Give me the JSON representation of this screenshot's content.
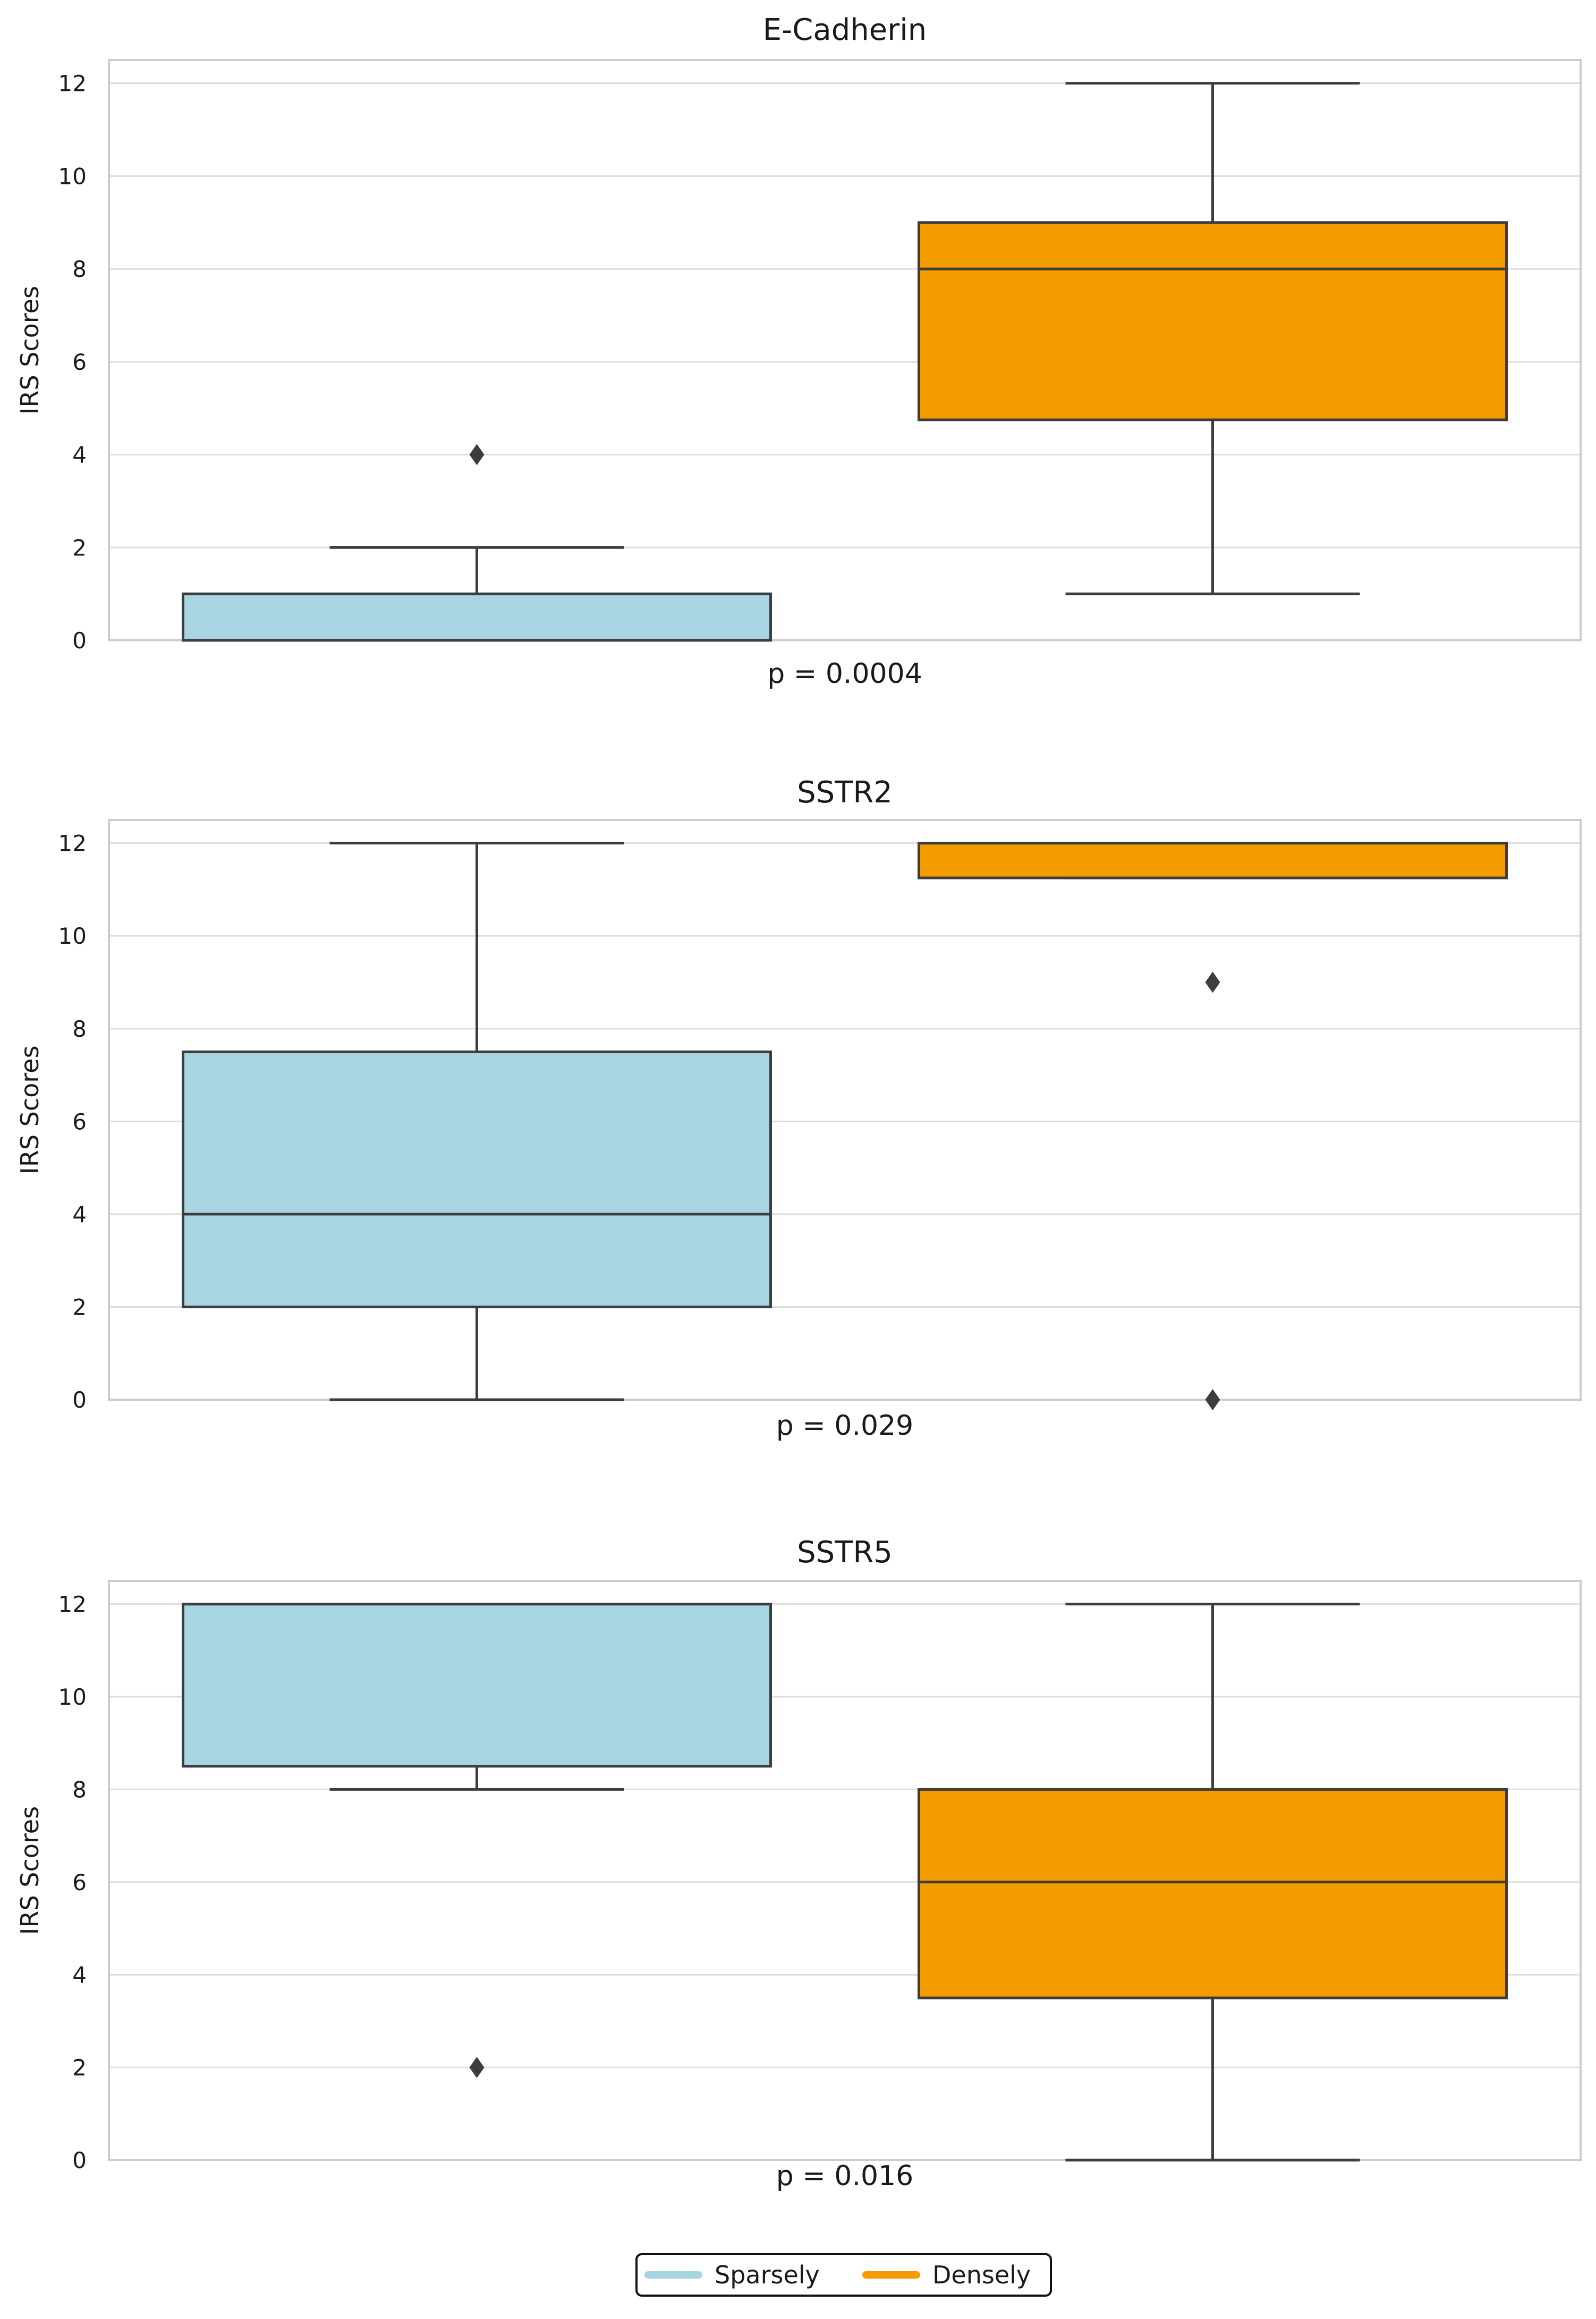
{
  "chart_data": [
    {
      "type": "box",
      "title": "E-Cadherin",
      "ylabel": "IRS Scores",
      "xlabel": "p = 0.0004",
      "ylim": [
        0,
        12.5
      ],
      "yticks": [
        0,
        2,
        4,
        6,
        8,
        10,
        12
      ],
      "grid": true,
      "groups": [
        {
          "name": "Sparsely",
          "whisker_low": 0,
          "q1": 0,
          "median": 0,
          "q3": 1,
          "whisker_high": 2,
          "outliers": [
            4
          ]
        },
        {
          "name": "Densely",
          "whisker_low": 1,
          "q1": 4.75,
          "median": 8,
          "q3": 9,
          "whisker_high": 12,
          "outliers": []
        }
      ]
    },
    {
      "type": "box",
      "title": "SSTR2",
      "ylabel": "IRS Scores",
      "xlabel": "p = 0.029",
      "ylim": [
        0,
        12.5
      ],
      "yticks": [
        0,
        2,
        4,
        6,
        8,
        10,
        12
      ],
      "grid": true,
      "groups": [
        {
          "name": "Sparsely",
          "whisker_low": 0,
          "q1": 2,
          "median": 4,
          "q3": 7.5,
          "whisker_high": 12,
          "outliers": []
        },
        {
          "name": "Densely",
          "whisker_low": 11.25,
          "q1": 11.25,
          "median": 12,
          "q3": 12,
          "whisker_high": 12,
          "outliers": [
            9,
            0
          ]
        }
      ]
    },
    {
      "type": "box",
      "title": "SSTR5",
      "ylabel": "IRS Scores",
      "xlabel": "p = 0.016",
      "ylim": [
        0,
        12.5
      ],
      "yticks": [
        0,
        2,
        4,
        6,
        8,
        10,
        12
      ],
      "grid": true,
      "groups": [
        {
          "name": "Sparsely",
          "whisker_low": 8,
          "q1": 8.5,
          "median": 12,
          "q3": 12,
          "whisker_high": 12,
          "outliers": [
            2
          ]
        },
        {
          "name": "Densely",
          "whisker_low": 0,
          "q1": 3.5,
          "median": 6,
          "q3": 8,
          "whisker_high": 12,
          "outliers": []
        }
      ]
    }
  ],
  "legend": {
    "placement": "bottom-center",
    "entries": [
      {
        "label": "Sparsely",
        "color": "#a8d5e2"
      },
      {
        "label": "Densely",
        "color": "#f39c00"
      }
    ]
  },
  "colors": {
    "line": "#3d3d3d",
    "grid": "#dddddd",
    "frame": "#cccccc"
  }
}
